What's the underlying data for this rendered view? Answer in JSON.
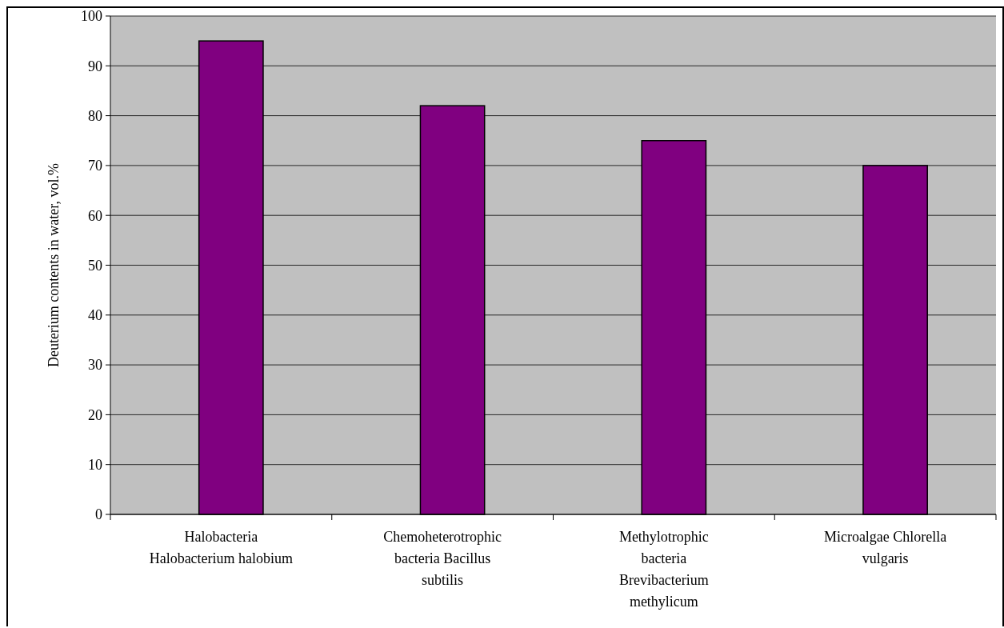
{
  "chart_data": {
    "type": "bar",
    "ylabel": "Deuterium contents in water, vol.%",
    "categories": [
      "Halobacteria Halobacterium halobium",
      "Chemoheterotrophic bacteria Bacillus subtilis",
      "Methylotrophic bacteria Brevibacterium methylicum",
      "Microalgae Chlorella vulgaris"
    ],
    "values": [
      95,
      82,
      75,
      70
    ],
    "color": "#800080",
    "ylim": [
      0,
      100
    ],
    "yticks": [
      0,
      10,
      20,
      30,
      40,
      50,
      60,
      70,
      80,
      90,
      100
    ],
    "grid": "y"
  }
}
